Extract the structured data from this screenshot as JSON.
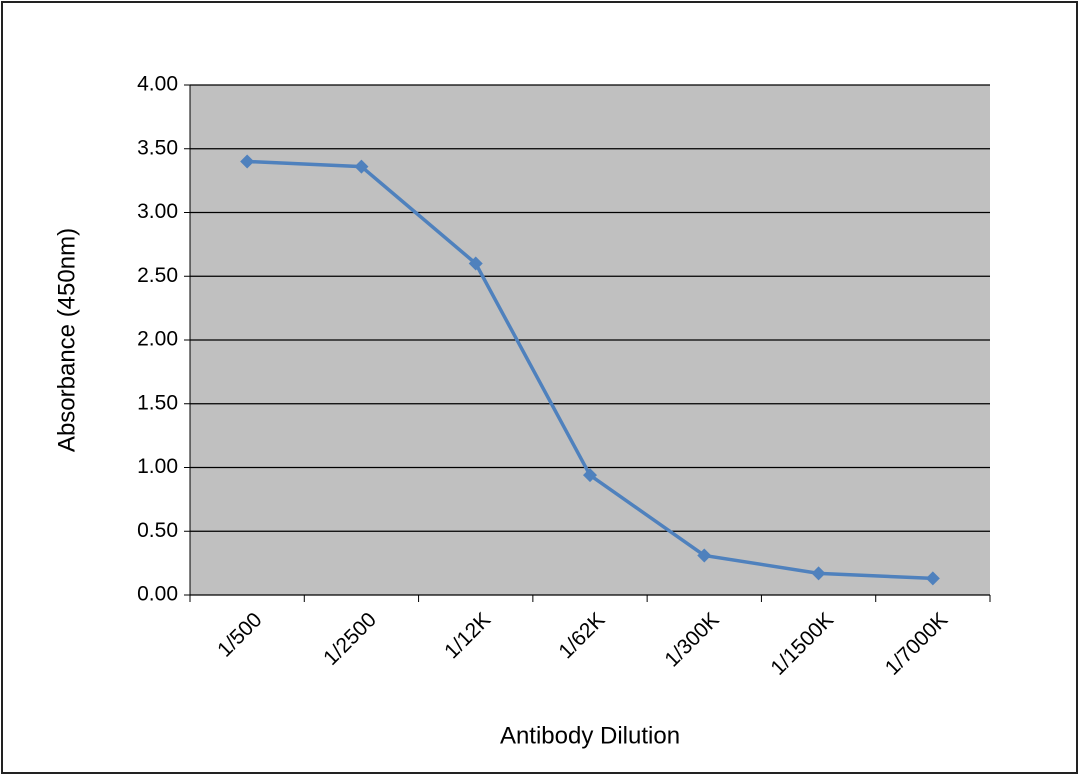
{
  "chart_data": {
    "type": "line",
    "x_label": "Antibody Dilution",
    "y_label": "Absorbance (450nm)",
    "categories": [
      "1/500",
      "1/2500",
      "1/12K",
      "1/62K",
      "1/300K",
      "1/1500K",
      "1/7000K"
    ],
    "series": [
      {
        "name": "Absorbance",
        "color": "#4f81bd",
        "values": [
          3.4,
          3.36,
          2.6,
          0.94,
          0.31,
          0.17,
          0.13
        ]
      }
    ],
    "ylim": [
      0,
      4
    ],
    "yticks": [
      {
        "value": 0,
        "label": "0.00"
      },
      {
        "value": 0.5,
        "label": "0.50"
      },
      {
        "value": 1,
        "label": "1.00"
      },
      {
        "value": 1.5,
        "label": "1.50"
      },
      {
        "value": 2,
        "label": "2.00"
      },
      {
        "value": 2.5,
        "label": "2.50"
      },
      {
        "value": 3,
        "label": "3.00"
      },
      {
        "value": 3.5,
        "label": "3.50"
      },
      {
        "value": 4,
        "label": "4.00"
      }
    ],
    "grid": true
  }
}
